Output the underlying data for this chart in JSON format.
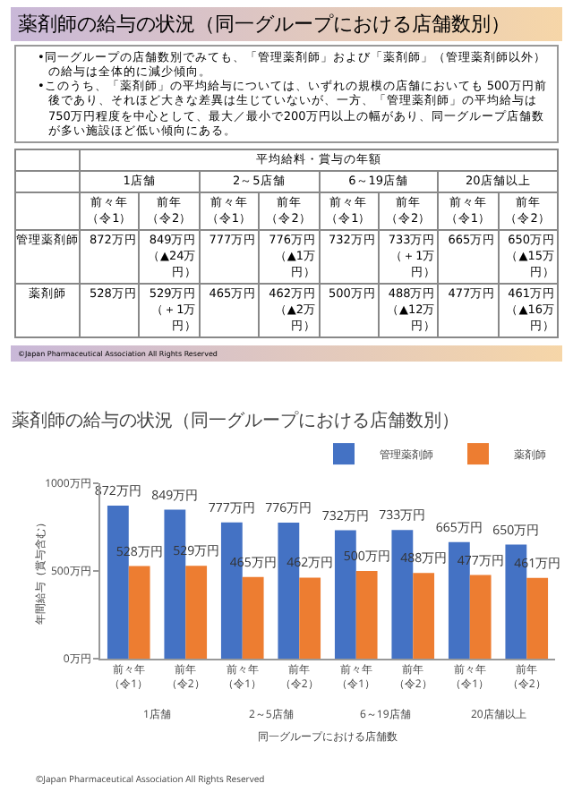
{
  "chart_data": [
    {
      "type": "other",
      "title": "薬剤師の給与の状況（同一グループにおける店舗数別）",
      "annotations": [
        "•同一グループの店舗数別でみても、「管理薬剤師」および「薬剤師」（管理薬剤師以外）の給与は全体的に減少傾向。",
        "•このうち、「薬剤師」の平均給与については、いずれの規模の店舗においても 500万円前後であり、それほど大きな差異は生じていないが、一方、「管理薬剤師」の平均給与は 750万円程度を中心として、最大／最小で200万円以上の幅があり、同一グループ店舗数が多い施設ほど低い傾向にある。",
        "1店舗",
        "2～5店舗",
        "6～19店舗",
        "20店舗以上",
        "©Japan Pharmaceutical Association All Rights Reserved"
      ],
      "xlabel": "平均給料・賞与の年額",
      "categories": [
        "前々年（令1）",
        "前年（令2）",
        "前々年（令1）",
        "前年（令2）",
        "前々年（令1）",
        "前年（令2）",
        "前々年（令1）",
        "前年（令2）"
      ],
      "y_categories": [
        "管理薬剤師",
        "薬剤師"
      ],
      "cell_labels": [
        [
          "872万円",
          "849万円（▲24万円）",
          "777万円",
          "776万円（▲1万円）",
          "732万円",
          "733万円（＋1万円）",
          "665万円",
          "650万円（▲15万円）"
        ],
        [
          "528万円",
          "529万円（＋1万円）",
          "465万円",
          "462万円（▲2万円）",
          "500万円",
          "488万円（▲12万円）",
          "477万円",
          "461万円（▲16万円）"
        ]
      ]
    },
    {
      "type": "bar",
      "title": "薬剤師の給与の状況（同一グループにおける店舗数別）",
      "categories": [
        "前々年（令1）",
        "前年（令2）",
        "前々年（令1）",
        "前年（令2）",
        "前々年（令1）",
        "前年（令2）",
        "前々年（令1）",
        "前年（令2）"
      ],
      "series": [
        {
          "name": "管理薬剤師",
          "color": "#4472c4",
          "values": [
            872,
            849,
            777,
            776,
            732,
            733,
            665,
            650
          ],
          "value_labels": [
            "872万円",
            "849万円",
            "777万円",
            "776万円",
            "732万円",
            "733万円",
            "665万円",
            "650万円"
          ]
        },
        {
          "name": "薬剤師",
          "color": "#ed7d31",
          "values": [
            528,
            529,
            465,
            462,
            500,
            488,
            477,
            461
          ],
          "value_labels": [
            "528万円",
            "529万円",
            "465万円",
            "462万円",
            "500万円",
            "488万円",
            "477万円",
            "461万円"
          ]
        }
      ],
      "ylim": [
        0,
        1000
      ],
      "yticks": [
        {
          "value": 0,
          "label": "0万円"
        },
        {
          "value": 500,
          "label": "500万円"
        },
        {
          "value": 1000,
          "label": "1000万円"
        }
      ],
      "ylabel": "年間給与（賞与含む）",
      "xlabel": "同一グループにおける店舗数",
      "annotations": [
        "1店舗",
        "2～5店舗",
        "6～19店舗",
        "20店舗以上",
        "©Japan Pharmaceutical Association All Rights Reserved"
      ],
      "legend": "top right",
      "grid": false
    }
  ]
}
